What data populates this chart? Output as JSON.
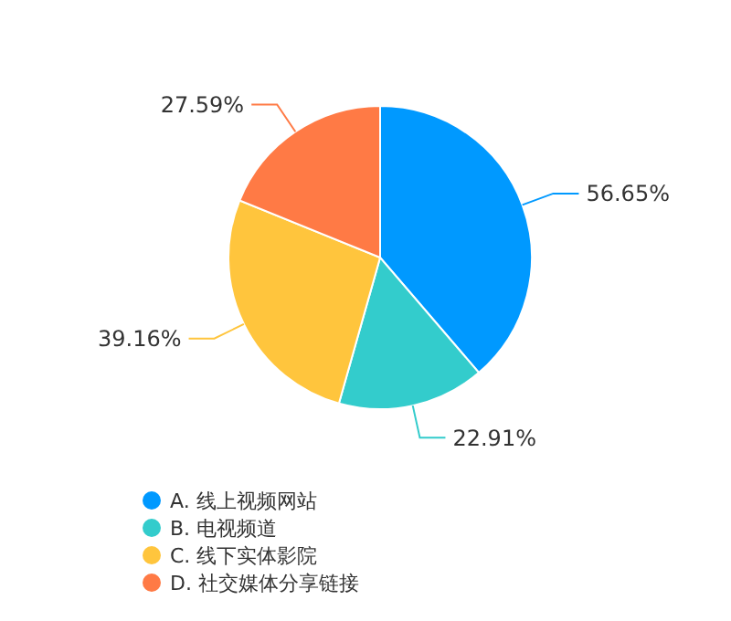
{
  "chart_data": {
    "type": "pie",
    "categories": [
      "A. 线上视频网站",
      "B. 电视频道",
      "C. 线下实体影院",
      "D. 社交媒体分享链接"
    ],
    "values": [
      56.65,
      22.91,
      39.16,
      27.59
    ],
    "colors": [
      "#0099ff",
      "#33cccc",
      "#ffc53d",
      "#ff7a45"
    ],
    "value_labels": [
      "56.65%",
      "22.91%",
      "39.16%",
      "27.59%"
    ],
    "legend": "bottom"
  }
}
